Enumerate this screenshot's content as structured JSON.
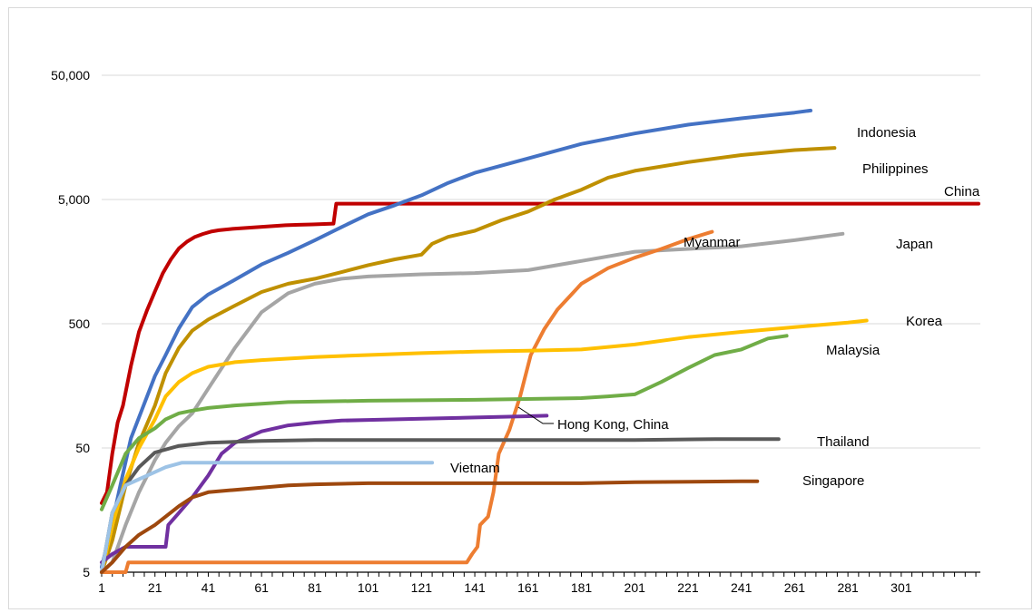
{
  "chart_data": {
    "type": "line",
    "title": "",
    "xlabel": "",
    "ylabel": "",
    "y_scale": "log",
    "ylim": [
      5,
      50000
    ],
    "xlim": [
      1,
      330
    ],
    "grid": "horizontal",
    "legend": "none (direct series labels)",
    "y_ticks": [
      {
        "value": 5,
        "label": "5"
      },
      {
        "value": 50,
        "label": "50"
      },
      {
        "value": 500,
        "label": "500"
      },
      {
        "value": 5000,
        "label": "5,000"
      },
      {
        "value": 50000,
        "label": "50,000"
      }
    ],
    "x_ticks": [
      {
        "value": 1,
        "label": "1"
      },
      {
        "value": 21,
        "label": "21"
      },
      {
        "value": 41,
        "label": "41"
      },
      {
        "value": 61,
        "label": "61"
      },
      {
        "value": 81,
        "label": "81"
      },
      {
        "value": 101,
        "label": "101"
      },
      {
        "value": 121,
        "label": "121"
      },
      {
        "value": 141,
        "label": "141"
      },
      {
        "value": 161,
        "label": "161"
      },
      {
        "value": 181,
        "label": "181"
      },
      {
        "value": 201,
        "label": "201"
      },
      {
        "value": 221,
        "label": "221"
      },
      {
        "value": 241,
        "label": "241"
      },
      {
        "value": 261,
        "label": "261"
      },
      {
        "value": 281,
        "label": "281"
      },
      {
        "value": 301,
        "label": "301"
      }
    ],
    "series": [
      {
        "name": "China",
        "color": "#c00000",
        "points": [
          [
            1,
            18
          ],
          [
            3,
            22
          ],
          [
            5,
            45
          ],
          [
            7,
            80
          ],
          [
            9,
            110
          ],
          [
            12,
            230
          ],
          [
            15,
            430
          ],
          [
            18,
            640
          ],
          [
            21,
            910
          ],
          [
            24,
            1280
          ],
          [
            27,
            1650
          ],
          [
            30,
            2020
          ],
          [
            33,
            2290
          ],
          [
            36,
            2500
          ],
          [
            39,
            2640
          ],
          [
            42,
            2760
          ],
          [
            45,
            2830
          ],
          [
            50,
            2900
          ],
          [
            55,
            2950
          ],
          [
            60,
            3000
          ],
          [
            65,
            3050
          ],
          [
            70,
            3100
          ],
          [
            75,
            3130
          ],
          [
            80,
            3150
          ],
          [
            88,
            3200
          ],
          [
            89,
            4630
          ],
          [
            100,
            4630
          ],
          [
            140,
            4630
          ],
          [
            200,
            4630
          ],
          [
            260,
            4630
          ],
          [
            330,
            4630
          ]
        ]
      },
      {
        "name": "Indonesia",
        "color": "#4472c4",
        "points": [
          [
            1,
            5.5
          ],
          [
            4,
            10
          ],
          [
            8,
            25
          ],
          [
            12,
            60
          ],
          [
            16,
            100
          ],
          [
            21,
            190
          ],
          [
            25,
            280
          ],
          [
            30,
            460
          ],
          [
            35,
            680
          ],
          [
            41,
            860
          ],
          [
            50,
            1100
          ],
          [
            61,
            1500
          ],
          [
            71,
            1860
          ],
          [
            81,
            2350
          ],
          [
            91,
            3000
          ],
          [
            101,
            3800
          ],
          [
            111,
            4500
          ],
          [
            121,
            5400
          ],
          [
            131,
            6800
          ],
          [
            141,
            8200
          ],
          [
            161,
            10700
          ],
          [
            181,
            14000
          ],
          [
            201,
            17000
          ],
          [
            221,
            20000
          ],
          [
            241,
            22500
          ],
          [
            261,
            25000
          ],
          [
            267,
            26000
          ]
        ]
      },
      {
        "name": "Philippines",
        "color": "#bf9000",
        "points": [
          [
            1,
            5
          ],
          [
            5,
            9
          ],
          [
            10,
            25
          ],
          [
            15,
            55
          ],
          [
            21,
            110
          ],
          [
            25,
            200
          ],
          [
            30,
            320
          ],
          [
            35,
            440
          ],
          [
            41,
            540
          ],
          [
            51,
            700
          ],
          [
            61,
            900
          ],
          [
            71,
            1050
          ],
          [
            81,
            1150
          ],
          [
            91,
            1300
          ],
          [
            101,
            1480
          ],
          [
            111,
            1650
          ],
          [
            121,
            1800
          ],
          [
            125,
            2200
          ],
          [
            131,
            2500
          ],
          [
            141,
            2800
          ],
          [
            151,
            3400
          ],
          [
            161,
            4000
          ],
          [
            171,
            5000
          ],
          [
            181,
            6000
          ],
          [
            191,
            7500
          ],
          [
            201,
            8500
          ],
          [
            221,
            10000
          ],
          [
            241,
            11400
          ],
          [
            261,
            12500
          ],
          [
            276,
            13000
          ]
        ]
      },
      {
        "name": "Japan",
        "color": "#a5a5a5",
        "points": [
          [
            1,
            5
          ],
          [
            5,
            6
          ],
          [
            10,
            12
          ],
          [
            15,
            22
          ],
          [
            21,
            40
          ],
          [
            25,
            55
          ],
          [
            30,
            75
          ],
          [
            35,
            95
          ],
          [
            41,
            150
          ],
          [
            51,
            320
          ],
          [
            61,
            620
          ],
          [
            71,
            880
          ],
          [
            81,
            1050
          ],
          [
            91,
            1150
          ],
          [
            101,
            1200
          ],
          [
            121,
            1250
          ],
          [
            141,
            1280
          ],
          [
            161,
            1350
          ],
          [
            181,
            1600
          ],
          [
            201,
            1900
          ],
          [
            221,
            2000
          ],
          [
            241,
            2100
          ],
          [
            261,
            2350
          ],
          [
            279,
            2650
          ]
        ]
      },
      {
        "name": "Myanmar",
        "color": "#ed7d31",
        "points": [
          [
            1,
            5
          ],
          [
            10,
            5
          ],
          [
            11,
            6
          ],
          [
            138,
            6
          ],
          [
            140,
            7
          ],
          [
            142,
            8
          ],
          [
            143,
            12
          ],
          [
            146,
            14
          ],
          [
            148,
            22
          ],
          [
            150,
            45
          ],
          [
            154,
            70
          ],
          [
            158,
            130
          ],
          [
            162,
            280
          ],
          [
            167,
            450
          ],
          [
            172,
            650
          ],
          [
            181,
            1050
          ],
          [
            191,
            1400
          ],
          [
            201,
            1700
          ],
          [
            211,
            2000
          ],
          [
            221,
            2400
          ],
          [
            230,
            2750
          ]
        ]
      },
      {
        "name": "Korea",
        "color": "#ffc000",
        "points": [
          [
            1,
            5
          ],
          [
            5,
            12
          ],
          [
            10,
            28
          ],
          [
            15,
            50
          ],
          [
            21,
            85
          ],
          [
            25,
            130
          ],
          [
            30,
            170
          ],
          [
            35,
            200
          ],
          [
            41,
            225
          ],
          [
            51,
            245
          ],
          [
            61,
            255
          ],
          [
            81,
            270
          ],
          [
            101,
            280
          ],
          [
            121,
            290
          ],
          [
            141,
            298
          ],
          [
            161,
            303
          ],
          [
            181,
            310
          ],
          [
            201,
            340
          ],
          [
            221,
            390
          ],
          [
            241,
            430
          ],
          [
            261,
            470
          ],
          [
            281,
            510
          ],
          [
            288,
            530
          ]
        ]
      },
      {
        "name": "Malaysia",
        "color": "#70ad47",
        "points": [
          [
            1,
            16
          ],
          [
            5,
            25
          ],
          [
            10,
            45
          ],
          [
            15,
            60
          ],
          [
            21,
            72
          ],
          [
            25,
            85
          ],
          [
            30,
            95
          ],
          [
            35,
            100
          ],
          [
            41,
            105
          ],
          [
            51,
            110
          ],
          [
            71,
            117
          ],
          [
            101,
            120
          ],
          [
            141,
            122
          ],
          [
            181,
            126
          ],
          [
            191,
            130
          ],
          [
            201,
            135
          ],
          [
            211,
            170
          ],
          [
            221,
            220
          ],
          [
            231,
            280
          ],
          [
            241,
            310
          ],
          [
            251,
            380
          ],
          [
            258,
            400
          ]
        ]
      },
      {
        "name": "Hong Kong, China",
        "color": "#7030a0",
        "points": [
          [
            1,
            6
          ],
          [
            5,
            7
          ],
          [
            10,
            8
          ],
          [
            20,
            8
          ],
          [
            25,
            8
          ],
          [
            26,
            12
          ],
          [
            30,
            15
          ],
          [
            35,
            20
          ],
          [
            41,
            30
          ],
          [
            46,
            45
          ],
          [
            51,
            55
          ],
          [
            61,
            68
          ],
          [
            71,
            76
          ],
          [
            81,
            80
          ],
          [
            91,
            83
          ],
          [
            101,
            84
          ],
          [
            121,
            86
          ],
          [
            141,
            88
          ],
          [
            161,
            90
          ],
          [
            168,
            91
          ]
        ]
      },
      {
        "name": "Thailand",
        "color": "#595959",
        "points": [
          [
            1,
            5
          ],
          [
            5,
            15
          ],
          [
            10,
            25
          ],
          [
            15,
            35
          ],
          [
            21,
            46
          ],
          [
            30,
            52
          ],
          [
            41,
            55
          ],
          [
            61,
            57
          ],
          [
            81,
            58
          ],
          [
            121,
            58
          ],
          [
            161,
            58
          ],
          [
            201,
            58
          ],
          [
            231,
            59
          ],
          [
            255,
            59
          ]
        ]
      },
      {
        "name": "Vietnam",
        "color": "#9dc3e6",
        "points": [
          [
            1,
            5
          ],
          [
            5,
            15
          ],
          [
            10,
            25
          ],
          [
            15,
            28
          ],
          [
            21,
            32
          ],
          [
            25,
            35
          ],
          [
            31,
            38
          ],
          [
            35,
            38
          ],
          [
            125,
            38
          ]
        ]
      },
      {
        "name": "Singapore",
        "color": "#9e480e",
        "points": [
          [
            1,
            5
          ],
          [
            5,
            6
          ],
          [
            10,
            8
          ],
          [
            15,
            10
          ],
          [
            21,
            12
          ],
          [
            25,
            14
          ],
          [
            30,
            17
          ],
          [
            35,
            20
          ],
          [
            41,
            22
          ],
          [
            51,
            23
          ],
          [
            61,
            24
          ],
          [
            71,
            25
          ],
          [
            81,
            25.5
          ],
          [
            101,
            26
          ],
          [
            121,
            26
          ],
          [
            161,
            26
          ],
          [
            181,
            26
          ],
          [
            201,
            26.5
          ],
          [
            241,
            27
          ],
          [
            247,
            27
          ]
        ]
      }
    ],
    "annotations": [
      {
        "text": "Indonesia"
      },
      {
        "text": "Philippines"
      },
      {
        "text": "China"
      },
      {
        "text": "Myanmar"
      },
      {
        "text": "Japan"
      },
      {
        "text": "Korea"
      },
      {
        "text": "Malaysia"
      },
      {
        "text": "Hong Kong, China"
      },
      {
        "text": "Thailand"
      },
      {
        "text": "Vietnam"
      },
      {
        "text": "Singapore"
      }
    ]
  }
}
